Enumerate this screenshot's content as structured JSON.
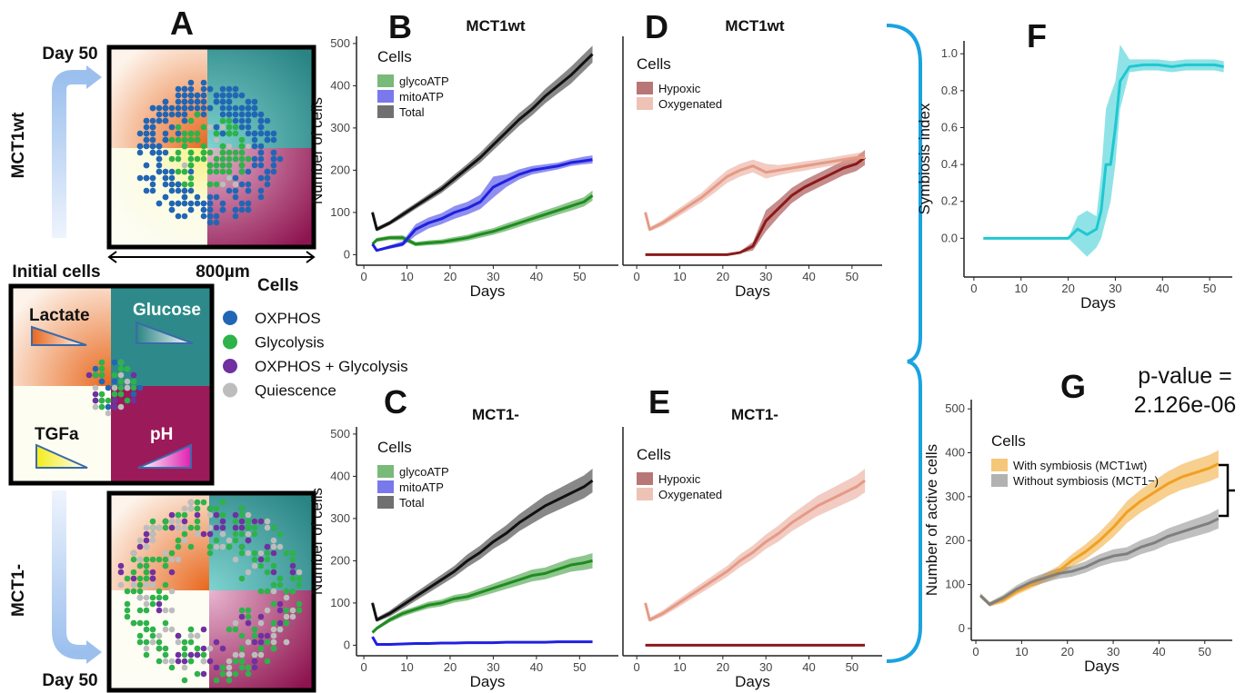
{
  "panel_a": {
    "letter": "A",
    "top_day": "Day 50",
    "top_label": "MCT1wt",
    "scale": "800µm",
    "initial": "Initial cells",
    "gradients": [
      "Lactate",
      "Glucose",
      "TGFa",
      "pH"
    ],
    "legend_title": "Cells",
    "legend": [
      {
        "name": "OXPHOS",
        "color": "#2166b5"
      },
      {
        "name": "Glycolysis",
        "color": "#2db34a"
      },
      {
        "name": "OXPHOS + Glycolysis",
        "color": "#7030a0"
      },
      {
        "name": "Quiescence",
        "color": "#bdbdbd"
      }
    ],
    "bottom_label": "MCT1-",
    "bottom_day": "Day 50"
  },
  "chart_data": [
    {
      "type": "line",
      "panel": "B",
      "title": "MCT1wt",
      "xlabel": "Days",
      "ylabel": "Number of cells",
      "legend_title": "Cells",
      "x": [
        2,
        3,
        6,
        9,
        12,
        15,
        18,
        21,
        24,
        27,
        30,
        33,
        36,
        39,
        42,
        45,
        48,
        51,
        53
      ],
      "xlim": [
        -1.7,
        59
      ],
      "ylim": [
        -25,
        517
      ],
      "xticks": [
        0,
        10,
        20,
        30,
        40,
        50
      ],
      "yticks": [
        0,
        100,
        200,
        300,
        400,
        500
      ],
      "series": [
        {
          "name": "glycoATP",
          "color": "#1e8c1e",
          "values": [
            25,
            35,
            40,
            40,
            25,
            28,
            30,
            35,
            40,
            48,
            55,
            65,
            75,
            85,
            95,
            105,
            115,
            125,
            140
          ],
          "lower": [
            22,
            30,
            35,
            34,
            20,
            22,
            24,
            28,
            33,
            40,
            47,
            56,
            66,
            76,
            85,
            95,
            104,
            114,
            128
          ],
          "upper": [
            28,
            40,
            45,
            46,
            30,
            34,
            36,
            42,
            47,
            56,
            63,
            74,
            84,
            94,
            105,
            115,
            126,
            136,
            152
          ]
        },
        {
          "name": "mitoATP",
          "color": "#2020e0",
          "values": [
            25,
            10,
            18,
            25,
            60,
            75,
            85,
            100,
            110,
            125,
            160,
            175,
            190,
            200,
            205,
            210,
            218,
            222,
            225
          ],
          "lower": [
            22,
            8,
            14,
            20,
            45,
            62,
            72,
            85,
            95,
            108,
            135,
            160,
            178,
            190,
            196,
            202,
            210,
            214,
            216
          ],
          "upper": [
            28,
            12,
            22,
            32,
            72,
            88,
            98,
            115,
            125,
            142,
            185,
            190,
            202,
            210,
            214,
            218,
            226,
            232,
            235
          ]
        },
        {
          "name": "Total",
          "color": "#111111",
          "values": [
            100,
            60,
            75,
            95,
            115,
            135,
            155,
            180,
            205,
            230,
            260,
            290,
            320,
            345,
            375,
            400,
            425,
            455,
            475
          ],
          "lower": [
            95,
            55,
            70,
            88,
            108,
            127,
            146,
            170,
            195,
            218,
            247,
            276,
            305,
            330,
            358,
            382,
            405,
            435,
            455
          ],
          "upper": [
            105,
            65,
            80,
            102,
            122,
            143,
            164,
            190,
            215,
            242,
            273,
            304,
            335,
            360,
            392,
            418,
            445,
            475,
            495
          ]
        }
      ]
    },
    {
      "type": "line",
      "panel": "C",
      "title": "MCT1-",
      "xlabel": "Days",
      "ylabel": "Number of cells",
      "legend_title": "Cells",
      "x": [
        2,
        3,
        6,
        9,
        12,
        15,
        18,
        21,
        24,
        27,
        30,
        33,
        36,
        39,
        42,
        45,
        48,
        51,
        53
      ],
      "xlim": [
        -1.7,
        59
      ],
      "ylim": [
        -25,
        517
      ],
      "xticks": [
        0,
        10,
        20,
        30,
        40,
        50
      ],
      "yticks": [
        0,
        100,
        200,
        300,
        400,
        500
      ],
      "series": [
        {
          "name": "glycoATP",
          "color": "#1e8c1e",
          "values": [
            30,
            40,
            60,
            75,
            85,
            95,
            100,
            110,
            115,
            125,
            135,
            145,
            155,
            165,
            170,
            180,
            190,
            195,
            200
          ],
          "lower": [
            27,
            36,
            54,
            68,
            78,
            87,
            92,
            101,
            106,
            115,
            124,
            133,
            142,
            151,
            156,
            165,
            174,
            178,
            182
          ],
          "upper": [
            33,
            44,
            66,
            82,
            92,
            103,
            108,
            119,
            124,
            135,
            146,
            157,
            168,
            179,
            184,
            195,
            206,
            212,
            218
          ]
        },
        {
          "name": "mitoATP",
          "color": "#2020e0",
          "values": [
            20,
            2,
            2,
            3,
            4,
            4,
            5,
            5,
            6,
            6,
            6,
            7,
            7,
            7,
            7,
            8,
            8,
            8,
            8
          ],
          "lower": [
            18,
            1,
            1,
            2,
            3,
            3,
            4,
            4,
            5,
            5,
            5,
            6,
            6,
            6,
            6,
            7,
            7,
            7,
            7
          ],
          "upper": [
            22,
            3,
            3,
            4,
            5,
            5,
            6,
            6,
            7,
            7,
            7,
            8,
            8,
            8,
            8,
            9,
            9,
            9,
            9
          ]
        },
        {
          "name": "Total",
          "color": "#111111",
          "values": [
            100,
            60,
            75,
            95,
            115,
            135,
            155,
            175,
            200,
            220,
            245,
            265,
            290,
            310,
            330,
            345,
            360,
            375,
            390
          ],
          "lower": [
            95,
            55,
            68,
            86,
            105,
            124,
            143,
            162,
            185,
            204,
            228,
            246,
            270,
            288,
            306,
            320,
            334,
            348,
            362
          ],
          "upper": [
            105,
            65,
            82,
            104,
            125,
            146,
            167,
            188,
            215,
            236,
            262,
            284,
            310,
            332,
            354,
            370,
            386,
            402,
            418
          ]
        }
      ]
    },
    {
      "type": "line",
      "panel": "D",
      "title": "MCT1wt",
      "xlabel": "Days",
      "legend_title": "Cells",
      "x": [
        2,
        3,
        6,
        9,
        12,
        15,
        18,
        21,
        24,
        27,
        30,
        33,
        36,
        39,
        42,
        45,
        48,
        51,
        53
      ],
      "xlim": [
        -3.2,
        57
      ],
      "ylim": [
        -25,
        517
      ],
      "xticks": [
        0,
        10,
        20,
        30,
        40,
        50
      ],
      "series": [
        {
          "name": "Hypoxic",
          "color": "#8b1a1a",
          "values": [
            0,
            0,
            0,
            0,
            0,
            0,
            0,
            0,
            5,
            20,
            80,
            110,
            140,
            160,
            175,
            190,
            205,
            215,
            230
          ],
          "lower": [
            0,
            0,
            0,
            0,
            0,
            0,
            0,
            0,
            3,
            10,
            55,
            90,
            122,
            143,
            158,
            173,
            188,
            198,
            212
          ],
          "upper": [
            0,
            0,
            0,
            0,
            0,
            0,
            0,
            0,
            8,
            30,
            105,
            130,
            158,
            177,
            192,
            207,
            222,
            232,
            248
          ]
        },
        {
          "name": "Oxygenated",
          "color": "#e59a86",
          "values": [
            100,
            60,
            75,
            95,
            115,
            135,
            160,
            185,
            200,
            210,
            195,
            200,
            205,
            210,
            215,
            220,
            225,
            230,
            230
          ],
          "lower": [
            95,
            55,
            68,
            86,
            105,
            124,
            146,
            170,
            185,
            195,
            180,
            188,
            194,
            199,
            205,
            210,
            215,
            220,
            220
          ],
          "upper": [
            105,
            65,
            82,
            104,
            125,
            146,
            174,
            200,
            215,
            225,
            215,
            212,
            216,
            221,
            225,
            230,
            235,
            240,
            244
          ]
        }
      ]
    },
    {
      "type": "line",
      "panel": "E",
      "title": "MCT1-",
      "xlabel": "Days",
      "legend_title": "Cells",
      "x": [
        2,
        3,
        6,
        9,
        12,
        15,
        18,
        21,
        24,
        27,
        30,
        33,
        36,
        39,
        42,
        45,
        48,
        51,
        53
      ],
      "xlim": [
        -3.2,
        57
      ],
      "ylim": [
        -25,
        517
      ],
      "xticks": [
        0,
        10,
        20,
        30,
        40,
        50
      ],
      "series": [
        {
          "name": "Hypoxic",
          "color": "#8b1a1a",
          "values": [
            0,
            0,
            0,
            0,
            0,
            0,
            0,
            0,
            0,
            0,
            0,
            0,
            0,
            0,
            0,
            0,
            0,
            0,
            0
          ]
        },
        {
          "name": "Oxygenated",
          "color": "#e59a86",
          "values": [
            100,
            60,
            75,
            95,
            115,
            135,
            155,
            175,
            200,
            220,
            245,
            265,
            290,
            310,
            330,
            345,
            360,
            375,
            390
          ],
          "lower": [
            95,
            55,
            68,
            86,
            105,
            124,
            143,
            162,
            185,
            204,
            228,
            246,
            270,
            288,
            306,
            320,
            334,
            348,
            362
          ],
          "upper": [
            105,
            65,
            82,
            104,
            125,
            146,
            167,
            188,
            215,
            236,
            262,
            284,
            310,
            332,
            354,
            370,
            386,
            402,
            418
          ]
        }
      ]
    },
    {
      "type": "line",
      "panel": "F",
      "xlabel": "Days",
      "ylabel": "Symbiosis index",
      "x": [
        2,
        5,
        10,
        15,
        20,
        22,
        24,
        26,
        27,
        28,
        29,
        30,
        31,
        33,
        36,
        39,
        42,
        45,
        48,
        51,
        53
      ],
      "xlim": [
        -2.1,
        54.8
      ],
      "ylim": [
        -0.21,
        1.07
      ],
      "xticks": [
        0,
        10,
        20,
        30,
        40,
        50
      ],
      "yticks": [
        {
          "value": 0,
          "label": "0.0"
        },
        0.2,
        0.4,
        0.6,
        0.8,
        {
          "value": 1,
          "label": "1.0"
        }
      ],
      "series": [
        {
          "color": "#1fc8d0",
          "values": [
            0,
            0,
            0,
            0,
            0,
            0.05,
            0.02,
            0.05,
            0.15,
            0.4,
            0.4,
            0.6,
            0.85,
            0.93,
            0.94,
            0.94,
            0.93,
            0.94,
            0.94,
            0.94,
            0.93
          ],
          "lower": [
            0,
            0,
            0,
            0,
            0,
            -0.05,
            -0.1,
            -0.05,
            0,
            0.1,
            0.2,
            0.4,
            0.7,
            0.9,
            0.91,
            0.91,
            0.9,
            0.91,
            0.91,
            0.91,
            0.9
          ],
          "upper": [
            0,
            0,
            0,
            0,
            0,
            0.12,
            0.15,
            0.12,
            0.35,
            0.7,
            0.78,
            0.85,
            1.05,
            0.97,
            0.97,
            0.97,
            0.96,
            0.97,
            0.97,
            0.97,
            0.96
          ]
        }
      ]
    },
    {
      "type": "line",
      "panel": "G",
      "xlabel": "Days",
      "ylabel": "Number of active cells",
      "legend_title": "Cells",
      "annotation": [
        "p-value =",
        "2.126e-06"
      ],
      "x": [
        1,
        3,
        6,
        9,
        12,
        15,
        18,
        21,
        24,
        27,
        30,
        33,
        36,
        39,
        42,
        45,
        48,
        51,
        53
      ],
      "xlim": [
        -1,
        56
      ],
      "ylim": [
        -27,
        521
      ],
      "xticks": [
        0,
        10,
        20,
        30,
        40,
        50
      ],
      "yticks": [
        0,
        100,
        200,
        300,
        400,
        500
      ],
      "series": [
        {
          "name": "With symbiosis (MCT1wt)",
          "color": "#f0a020",
          "values": [
            75,
            55,
            65,
            85,
            100,
            115,
            130,
            155,
            175,
            200,
            230,
            265,
            290,
            310,
            330,
            345,
            355,
            365,
            375
          ],
          "lower": [
            70,
            50,
            58,
            77,
            91,
            105,
            118,
            141,
            158,
            181,
            208,
            240,
            264,
            283,
            302,
            316,
            325,
            335,
            344
          ],
          "upper": [
            80,
            60,
            72,
            93,
            109,
            125,
            142,
            169,
            192,
            219,
            252,
            290,
            316,
            337,
            358,
            374,
            385,
            395,
            406
          ]
        },
        {
          "name": "Without symbiosis (MCT1−)",
          "color": "#7f7f7f",
          "values": [
            75,
            55,
            70,
            90,
            105,
            115,
            125,
            130,
            140,
            155,
            165,
            170,
            185,
            195,
            210,
            220,
            230,
            240,
            250
          ],
          "lower": [
            70,
            50,
            63,
            81,
            95,
            104,
            113,
            118,
            127,
            141,
            150,
            155,
            169,
            178,
            192,
            201,
            210,
            219,
            228
          ],
          "upper": [
            80,
            60,
            77,
            99,
            115,
            126,
            137,
            142,
            153,
            169,
            180,
            185,
            201,
            212,
            228,
            239,
            250,
            261,
            272
          ]
        }
      ]
    }
  ]
}
